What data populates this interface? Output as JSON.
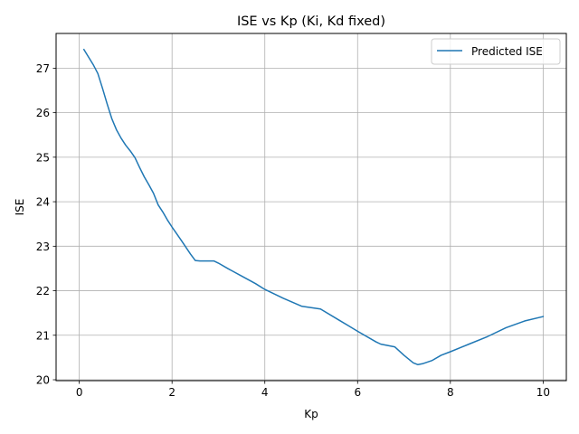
{
  "chart_data": {
    "type": "line",
    "title": "ISE vs Kp (Ki, Kd fixed)",
    "xlabel": "Kp",
    "ylabel": "ISE",
    "xlim": [
      -0.5,
      10.5
    ],
    "ylim": [
      19.98,
      27.78
    ],
    "xticks": [
      0,
      2,
      4,
      6,
      8,
      10
    ],
    "yticks": [
      20,
      21,
      22,
      23,
      24,
      25,
      26,
      27
    ],
    "grid": true,
    "legend_position": "top-right",
    "colors": {
      "series": "#1f77b4",
      "grid": "#b0b0b0",
      "axes": "#000000"
    },
    "series": [
      {
        "name": "Predicted ISE",
        "x": [
          0.1,
          0.2,
          0.3,
          0.4,
          0.5,
          0.6,
          0.7,
          0.8,
          0.9,
          1.0,
          1.1,
          1.2,
          1.3,
          1.4,
          1.5,
          1.6,
          1.7,
          1.8,
          1.9,
          2.0,
          2.2,
          2.4,
          2.5,
          2.6,
          2.8,
          2.9,
          3.0,
          3.2,
          3.5,
          3.8,
          4.0,
          4.4,
          4.8,
          5.2,
          5.6,
          6.0,
          6.4,
          6.5,
          6.8,
          7.0,
          7.2,
          7.3,
          7.4,
          7.6,
          7.8,
          8.0,
          8.4,
          8.8,
          9.2,
          9.6,
          10.0
        ],
        "values": [
          27.42,
          27.25,
          27.08,
          26.88,
          26.55,
          26.2,
          25.87,
          25.62,
          25.43,
          25.27,
          25.14,
          24.99,
          24.77,
          24.56,
          24.38,
          24.19,
          23.93,
          23.77,
          23.59,
          23.43,
          23.13,
          22.82,
          22.68,
          22.67,
          22.67,
          22.67,
          22.62,
          22.5,
          22.33,
          22.16,
          22.03,
          21.83,
          21.65,
          21.59,
          21.34,
          21.09,
          20.85,
          20.8,
          20.74,
          20.55,
          20.38,
          20.34,
          20.36,
          20.43,
          20.55,
          20.63,
          20.8,
          20.97,
          21.17,
          21.32,
          21.42
        ]
      }
    ]
  }
}
